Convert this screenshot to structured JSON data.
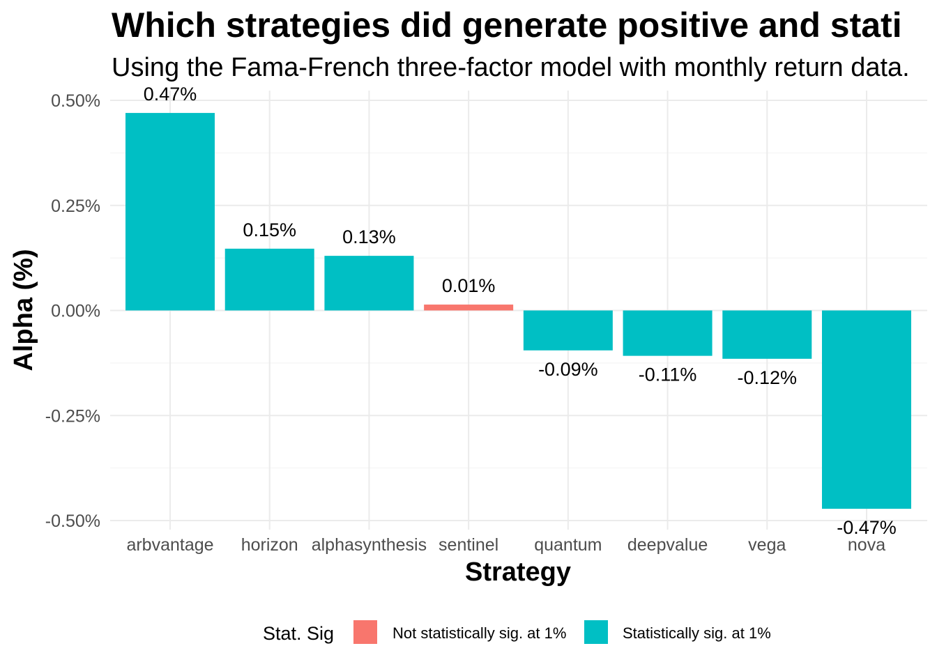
{
  "chart_data": {
    "type": "bar",
    "title": "Which strategies did generate positive and stati",
    "subtitle": "Using the Fama-French three-factor model with monthly return data.",
    "xlabel": "Strategy",
    "ylabel": "Alpha (%)",
    "categories": [
      "arbvantage",
      "horizon",
      "alphasynthesis",
      "sentinel",
      "quantum",
      "deepvalue",
      "vega",
      "nova"
    ],
    "values": [
      0.47,
      0.147,
      0.13,
      0.014,
      -0.095,
      -0.108,
      -0.115,
      -0.472
    ],
    "value_labels": [
      "0.47%",
      "0.15%",
      "0.13%",
      "0.01%",
      "-0.09%",
      "-0.11%",
      "-0.12%",
      "-0.47%"
    ],
    "significance": [
      "sig",
      "sig",
      "sig",
      "not_sig",
      "sig",
      "sig",
      "sig",
      "sig"
    ],
    "ylim": [
      -0.5,
      0.5
    ],
    "yticks": [
      -0.5,
      -0.25,
      0,
      0.25,
      0.5
    ],
    "ytick_labels": [
      "-0.50%",
      "-0.25%",
      "0.00%",
      "0.25%",
      "0.50%"
    ],
    "grid": true,
    "legend": {
      "position": "bottom",
      "title": "Stat. Sig",
      "entries": [
        {
          "key": "not_sig",
          "label": "Not statistically sig. at 1%",
          "color": "#F8766D"
        },
        {
          "key": "sig",
          "label": "Statistically sig. at 1%",
          "color": "#00BFC4"
        }
      ]
    }
  }
}
